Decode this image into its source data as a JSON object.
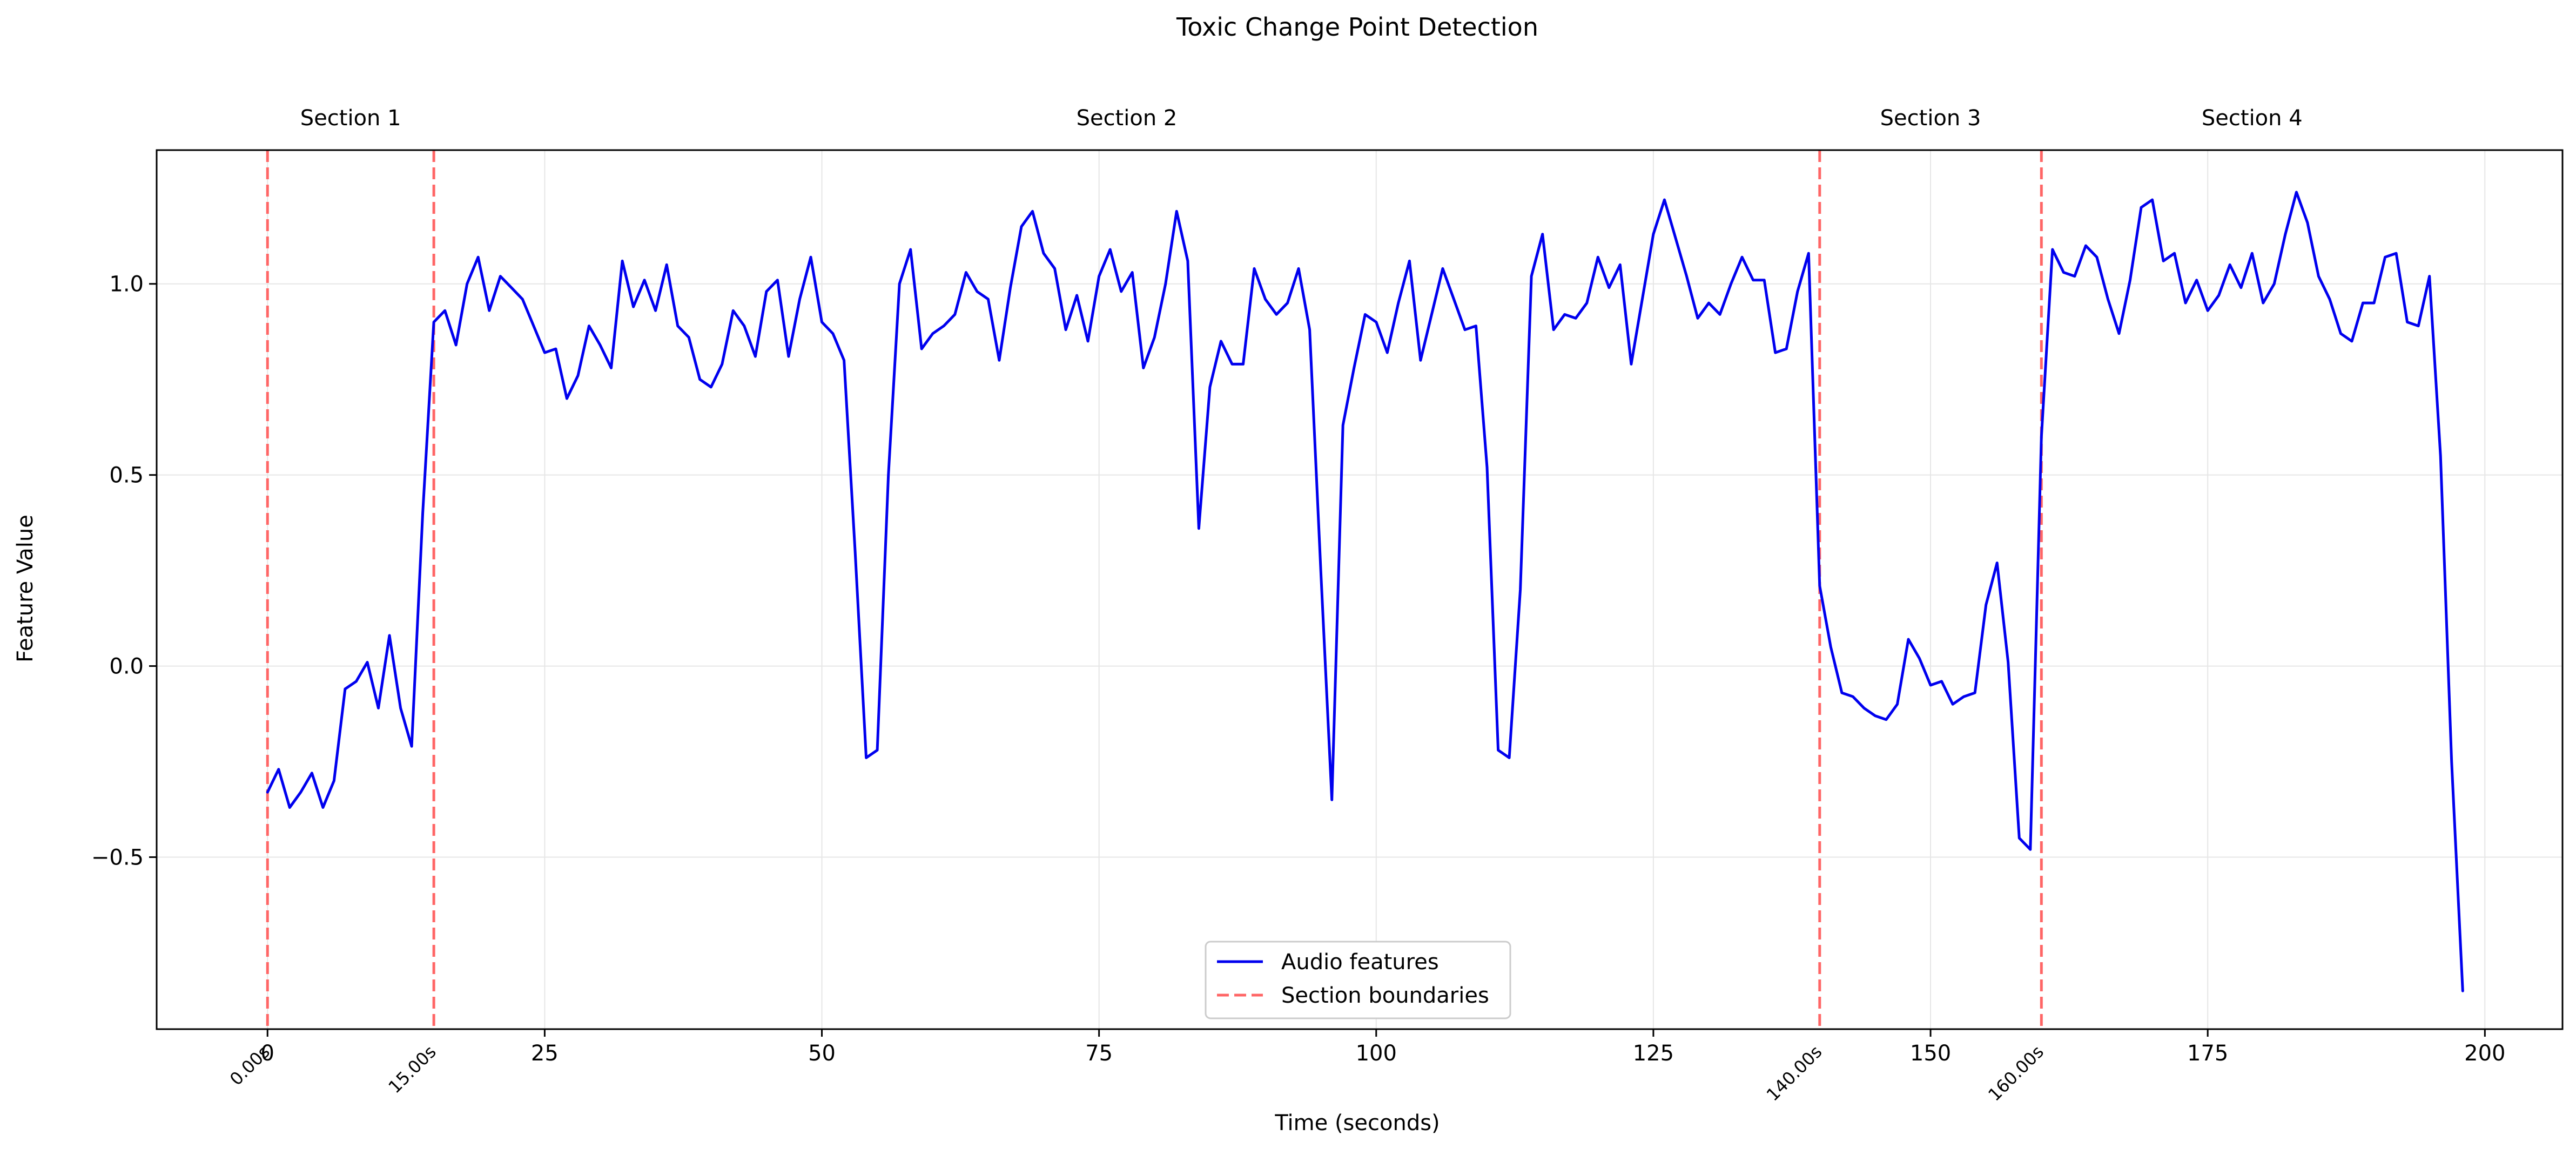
{
  "chart_data": {
    "type": "line",
    "title": "Toxic Change Point Detection",
    "xlabel": "Time (seconds)",
    "ylabel": "Feature Value",
    "xlim": [
      -10,
      207
    ],
    "ylim": [
      -0.95,
      1.35
    ],
    "xticks": [
      0,
      25,
      50,
      75,
      100,
      125,
      150,
      175,
      200
    ],
    "yticks": [
      -0.5,
      0.0,
      0.5,
      1.0
    ],
    "xtick_labels": [
      "0",
      "25",
      "50",
      "75",
      "100",
      "125",
      "150",
      "175",
      "200"
    ],
    "ytick_labels": [
      "−0.5",
      "0.0",
      "0.5",
      "1.0"
    ],
    "grid": true,
    "legend_position": "bottom-center",
    "series": [
      {
        "name": "Audio features",
        "color": "#0000ee",
        "x_start": 0,
        "x_step": 1,
        "values": [
          -0.33,
          -0.27,
          -0.37,
          -0.33,
          -0.28,
          -0.37,
          -0.3,
          -0.06,
          -0.04,
          0.01,
          -0.11,
          0.08,
          -0.11,
          -0.21,
          0.4,
          0.9,
          0.93,
          0.84,
          1.0,
          1.07,
          0.93,
          1.02,
          0.99,
          0.96,
          0.89,
          0.82,
          0.83,
          0.7,
          0.76,
          0.89,
          0.84,
          0.78,
          1.06,
          0.94,
          1.01,
          0.93,
          1.05,
          0.89,
          0.86,
          0.75,
          0.73,
          0.79,
          0.93,
          0.89,
          0.81,
          0.98,
          1.01,
          0.81,
          0.96,
          1.07,
          0.9,
          0.87,
          0.8,
          0.3,
          -0.24,
          -0.22,
          0.5,
          1.0,
          1.09,
          0.83,
          0.87,
          0.89,
          0.92,
          1.03,
          0.98,
          0.96,
          0.8,
          0.99,
          1.15,
          1.19,
          1.08,
          1.04,
          0.88,
          0.97,
          0.85,
          1.02,
          1.09,
          0.98,
          1.03,
          0.78,
          0.86,
          1.0,
          1.19,
          1.06,
          0.36,
          0.73,
          0.85,
          0.79,
          0.79,
          1.04,
          0.96,
          0.92,
          0.95,
          1.04,
          0.88,
          0.25,
          -0.35,
          0.63,
          0.78,
          0.92,
          0.9,
          0.82,
          0.95,
          1.06,
          0.8,
          0.92,
          1.04,
          0.96,
          0.88,
          0.89,
          0.52,
          -0.22,
          -0.24,
          0.2,
          1.02,
          1.13,
          0.88,
          0.92,
          0.91,
          0.95,
          1.07,
          0.99,
          1.05,
          0.79,
          0.96,
          1.13,
          1.22,
          1.12,
          1.02,
          0.91,
          0.95,
          0.92,
          1.0,
          1.07,
          1.01,
          1.01,
          0.82,
          0.83,
          0.98,
          1.08,
          0.21,
          0.05,
          -0.07,
          -0.08,
          -0.11,
          -0.13,
          -0.14,
          -0.1,
          0.07,
          0.02,
          -0.05,
          -0.04,
          -0.1,
          -0.08,
          -0.07,
          0.16,
          0.27,
          0.01,
          -0.45,
          -0.48,
          0.6,
          1.09,
          1.03,
          1.02,
          1.1,
          1.07,
          0.96,
          0.87,
          1.01,
          1.2,
          1.22,
          1.06,
          1.08,
          0.95,
          1.01,
          0.93,
          0.97,
          1.05,
          0.99,
          1.08,
          0.95,
          1.0,
          1.13,
          1.24,
          1.16,
          1.02,
          0.96,
          0.87,
          0.85,
          0.95,
          0.95,
          1.07,
          1.08,
          0.9,
          0.89,
          1.02,
          0.55,
          -0.25,
          -0.85
        ]
      }
    ],
    "change_points": [
      {
        "x": 0,
        "label": "0.00s"
      },
      {
        "x": 15,
        "label": "15.00s"
      },
      {
        "x": 140,
        "label": "140.00s"
      },
      {
        "x": 160,
        "label": "160.00s"
      }
    ],
    "boundary_series": {
      "name": "Section boundaries",
      "color": "#ff6666"
    },
    "sections": [
      {
        "label": "Section 1",
        "x": 7.5
      },
      {
        "label": "Section 2",
        "x": 77.5
      },
      {
        "label": "Section 3",
        "x": 150
      },
      {
        "label": "Section 4",
        "x": 179
      }
    ]
  }
}
